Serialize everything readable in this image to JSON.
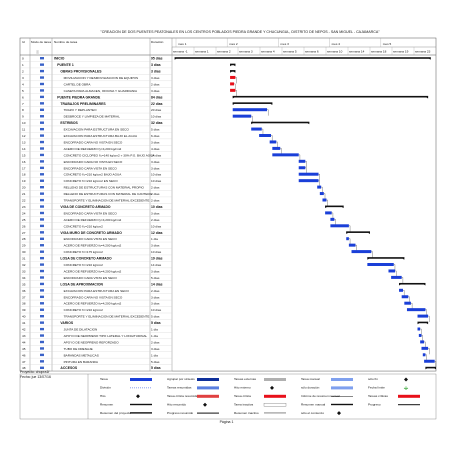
{
  "page_title": "\"CREACION DE DOS PUENTES PEATONALES EN LOS CENTROS POBLADOS PIEDRA GRANDE Y CHUCUNGUL, DISTRITO DE NEPOS - SAN MIGUEL - CAJAMARCA\"",
  "columns": {
    "id": "Id",
    "mode": "Modo de tarea",
    "name": "Nombre de tarea",
    "duration": "Duración"
  },
  "timescale": {
    "months": [
      "mes 1",
      "mes 2",
      "mes 3",
      "mes 4",
      "mes 5"
    ],
    "weeks": [
      "semana -1",
      "semana 1",
      "semana 2",
      "semana 3",
      "semana 4",
      "semana 5",
      "semana 6",
      "semana 10",
      "semana 14",
      "semana 18",
      "semana 19",
      "semana 23"
    ]
  },
  "tasks": [
    {
      "id": "0",
      "name": "INICIO",
      "duration": "95 días",
      "level": 0,
      "summary": true
    },
    {
      "id": "1",
      "name": "PUENTE 1",
      "duration": "3 días",
      "level": 1,
      "summary": true
    },
    {
      "id": "2",
      "name": "OBRAS PROVISIONALES",
      "duration": "3 días",
      "level": 2,
      "summary": true
    },
    {
      "id": "3",
      "name": "MOVILIZACION Y DESMOVILIZACION DE EQUIPOS",
      "duration": "3 días",
      "level": 3
    },
    {
      "id": "4",
      "name": "CARTEL DE OBRA",
      "duration": "2 días",
      "level": 3
    },
    {
      "id": "5",
      "name": "CASETA PARA ALMACEN, OFICINA Y GUARDIANIA",
      "duration": "3 días",
      "level": 3
    },
    {
      "id": "6",
      "name": "PUENTE PIEDRA GRANDE",
      "duration": "84 días",
      "level": 1,
      "summary": true
    },
    {
      "id": "7",
      "name": "TRABAJOS PRELIMINARES",
      "duration": "22 días",
      "level": 2,
      "summary": true
    },
    {
      "id": "8",
      "name": "TRAZO Y REPLANTEO",
      "duration": "20 días",
      "level": 3
    },
    {
      "id": "9",
      "name": "DESBROCE Y LIMPIEZA DE MATERIAL",
      "duration": "10 días",
      "level": 3
    },
    {
      "id": "10",
      "name": "ESTRIBOS",
      "duration": "32 días",
      "level": 2,
      "summary": true
    },
    {
      "id": "11",
      "name": "EXCAVACION PARA ESTRUCTURA EN SECO",
      "duration": "5 días",
      "level": 3
    },
    {
      "id": "12",
      "name": "EXCAVACION PARA ESTRUCTURA BAJO EL AGUA",
      "duration": "6 días",
      "level": 3
    },
    {
      "id": "13",
      "name": "ENCOFRADO CARA NO VISTA EN SECO",
      "duration": "3 días",
      "level": 3
    },
    {
      "id": "14",
      "name": "ACERO DE REFUERZO fy=4,200 kg/cm2",
      "duration": "4 días",
      "level": 3
    },
    {
      "id": "15",
      "name": "CONCRETO CICLOPEO f'c=140 kg/cm2 + 30% P.G. BAJO AGUA",
      "duration": "14 días",
      "level": 3
    },
    {
      "id": "16",
      "name": "ENCOFRADO CARA NO VISTA EN SECO",
      "duration": "3 días",
      "level": 3
    },
    {
      "id": "17",
      "name": "ENCOFRADO CARA VISTA EN SECO",
      "duration": "3 días",
      "level": 3
    },
    {
      "id": "18",
      "name": "CONCRETO f'c=210 kg/cm2 BAJO AGUA",
      "duration": "10 días",
      "level": 3
    },
    {
      "id": "19",
      "name": "CONCRETO f'c=210 kg/cm2 EN SECO",
      "duration": "10 días",
      "level": 3
    },
    {
      "id": "20",
      "name": "RELLENO DE ESTRUCTURAS CON MATERIAL PROPIO",
      "duration": "2 días",
      "level": 3
    },
    {
      "id": "21",
      "name": "RELLENO DE ESTRUCTURAS CON MATERIAL DE CANTERA",
      "duration": "2 días",
      "level": 3
    },
    {
      "id": "22",
      "name": "TRANSPORTE Y ELIMINACION DE MATERIAL EXCEDENTE",
      "duration": "2 días",
      "level": 3
    },
    {
      "id": "23",
      "name": "VIGA DE CONCRETO ARMADO",
      "duration": "10 días",
      "level": 2,
      "summary": true
    },
    {
      "id": "24",
      "name": "ENCOFRADO CARA VISTA EN SECO",
      "duration": "3 días",
      "level": 3
    },
    {
      "id": "25",
      "name": "ACERO DE REFUERZO fy=4,200 kg/cm2",
      "duration": "2 días",
      "level": 3
    },
    {
      "id": "26",
      "name": "CONCRETO f'c=210 kg/cm2",
      "duration": "10 días",
      "level": 3
    },
    {
      "id": "27",
      "name": "VIGA MURO DE CONCRETO ARMADO",
      "duration": "12 días",
      "level": 2,
      "summary": true
    },
    {
      "id": "28",
      "name": "ENCOFRADO CARA VISTA EN SECO",
      "duration": "1 día",
      "level": 3
    },
    {
      "id": "29",
      "name": "ACERO DE REFUERZO fy=4,200 kg/cm2",
      "duration": "3 días",
      "level": 3
    },
    {
      "id": "30",
      "name": "CONCRETO f'c=175 kg/cm2",
      "duration": "10 días",
      "level": 3
    },
    {
      "id": "31",
      "name": "LOSA DE CONCRETO ARMADO",
      "duration": "19 días",
      "level": 2,
      "summary": true
    },
    {
      "id": "32",
      "name": "CONCRETO f'c=210 kg/cm2",
      "duration": "14 días",
      "level": 3
    },
    {
      "id": "33",
      "name": "ACERO DE REFUERZO fy=4,200 kg/cm2",
      "duration": "3 días",
      "level": 3
    },
    {
      "id": "34",
      "name": "ENCOFRADO CARA VISTA EN SECO",
      "duration": "5 días",
      "level": 3
    },
    {
      "id": "35",
      "name": "LOSA DE APROXIMACION",
      "duration": "14 días",
      "level": 2,
      "summary": true
    },
    {
      "id": "36",
      "name": "EXCAVACION PARA ESTRUCTURA EN SECO",
      "duration": "2 días",
      "level": 3
    },
    {
      "id": "37",
      "name": "ENCOFRADO CARA NO VISTA EN SECO",
      "duration": "3 días",
      "level": 3
    },
    {
      "id": "38",
      "name": "ACERO DE REFUERZO fy=4,200 kg/cm2",
      "duration": "3 días",
      "level": 3
    },
    {
      "id": "39",
      "name": "CONCRETO f'c=210 kg/cm2",
      "duration": "10 días",
      "level": 3
    },
    {
      "id": "40",
      "name": "TRANSPORTE Y ELIMINACION DE MATERIAL EXCEDENTE",
      "duration": "5 días",
      "level": 3
    },
    {
      "id": "41",
      "name": "VARIOS",
      "duration": "5 días",
      "level": 2,
      "summary": true
    },
    {
      "id": "42",
      "name": "JUNTA DE DILATACION",
      "duration": "1 día",
      "level": 3
    },
    {
      "id": "43",
      "name": "APOYO DE NEOPRENO TIPO LATERAL Y LONGITUDINAL",
      "duration": "1 día",
      "level": 3
    },
    {
      "id": "44",
      "name": "APOYO DE NEOPRENO REFORZADO",
      "duration": "2 días",
      "level": 3
    },
    {
      "id": "45",
      "name": "TUBO DE DRENAJE",
      "duration": "3 días",
      "level": 3
    },
    {
      "id": "46",
      "name": "BARANDAS METALICAS",
      "duration": "1 día",
      "level": 3
    },
    {
      "id": "47",
      "name": "PINTURA EN BARANDA",
      "duration": "5 días",
      "level": 3
    },
    {
      "id": "48",
      "name": "ACCESOS",
      "duration": "5 días",
      "level": 2,
      "summary": true
    }
  ],
  "project_info": {
    "line1": "Proyecto: chopra1f",
    "line2": "Fecha: jue 13/07/16"
  },
  "legend": [
    [
      {
        "label": "Tarea",
        "sym": "task"
      },
      {
        "label": "División",
        "sym": "split"
      },
      {
        "label": "Hito",
        "sym": "milestone"
      },
      {
        "label": "Resumen",
        "sym": "summary"
      },
      {
        "label": "Resumen del proyecto",
        "sym": "projsum"
      }
    ],
    [
      {
        "label": "Agrupar por síntesis",
        "sym": "group"
      },
      {
        "label": "Tareas resumidas",
        "sym": "rolled"
      },
      {
        "label": "Tarea crítica resumida",
        "sym": "critsum"
      },
      {
        "label": "Hito resumido",
        "sym": "rollhito"
      },
      {
        "label": "Progreso resumido",
        "sym": "rollprog"
      }
    ],
    [
      {
        "label": "Tareas externas",
        "sym": "external"
      },
      {
        "label": "Hito externo",
        "sym": "exthito"
      },
      {
        "label": "Tarea crítica",
        "sym": "critical"
      },
      {
        "label": "Tarea inactiva",
        "sym": "inactive"
      },
      {
        "label": "Resumen inactivo",
        "sym": "inactsum"
      }
    ],
    [
      {
        "label": "Tarea manual",
        "sym": "manual"
      },
      {
        "label": "sólo duración",
        "sym": "durationonly"
      },
      {
        "label": "Informe de resumen manual",
        "sym": "manualrep"
      },
      {
        "label": "Resumen manual",
        "sym": "manualsum"
      },
      {
        "label": "sólo el comienzo",
        "sym": "startonly"
      }
    ],
    [
      {
        "label": "sólo fin",
        "sym": "finishonly"
      },
      {
        "label": "Fecha límite",
        "sym": "deadline"
      },
      {
        "label": "Tareas críticas",
        "sym": "critical2"
      },
      {
        "label": "Progreso",
        "sym": "progress"
      },
      {
        "label": "",
        "sym": "none"
      }
    ]
  ],
  "footer": "Página 1",
  "colors": {
    "task": "#1a3fd8",
    "critical": "#e8101a",
    "summary": "#111111",
    "grid": "#8a8a8a"
  }
}
